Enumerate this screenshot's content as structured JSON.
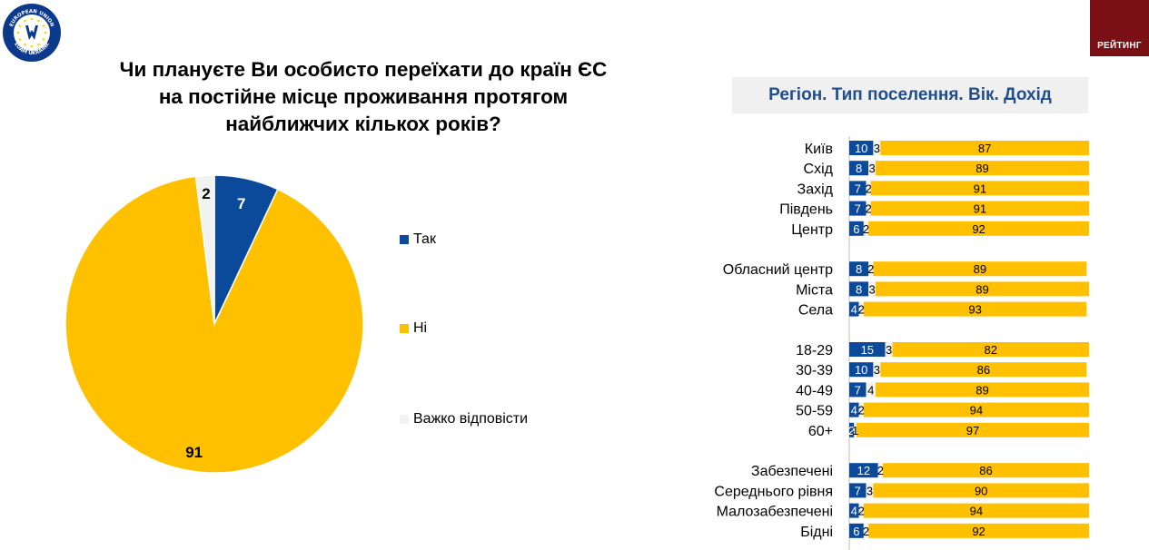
{
  "branding": {
    "left_logo_text_top": "EUROPEAN UNION",
    "left_logo_text_bottom": "EUAM UKRAINE",
    "right_logo_text": "РЕЙТИНГ"
  },
  "colors": {
    "yes": "#0b4a9a",
    "no": "#ffc000",
    "hard": "#f2f2f2",
    "header_text": "#1f4e8c",
    "brand_red": "#7a1015"
  },
  "main_title": "Чи плануєте Ви особисто переїхати до країн ЄС\nна постійне місце проживання протягом\nнайближчих кількох років?",
  "section_header": "Регіон. Тип поселення. Вік. Дохід",
  "legend": [
    {
      "label": "Так",
      "color": "#0b4a9a"
    },
    {
      "label": "Ні",
      "color": "#ffc000"
    },
    {
      "label": "Важко відповісти",
      "color": "#f2f2f2"
    }
  ],
  "chart_data": [
    {
      "type": "pie",
      "categories": [
        "Так",
        "Ні",
        "Важко відповісти"
      ],
      "values": [
        7,
        91,
        2
      ],
      "data_labels": [
        "7",
        "91",
        "2"
      ],
      "legend_position": "right"
    },
    {
      "type": "bar",
      "orientation": "horizontal",
      "stacked": true,
      "xlim": [
        0,
        100
      ],
      "groups": [
        [
          "Київ",
          "Схід",
          "Захід",
          "Південь",
          "Центр"
        ],
        [
          "Обласний центр",
          "Міста",
          "Села"
        ],
        [
          "18-29",
          "30-39",
          "40-49",
          "50-59",
          "60+"
        ],
        [
          "Забезпечені",
          "Середнього рівня",
          "Малозабезпечені",
          "Бідні"
        ]
      ],
      "categories": [
        "Київ",
        "Схід",
        "Захід",
        "Південь",
        "Центр",
        "Обласний центр",
        "Міста",
        "Села",
        "18-29",
        "30-39",
        "40-49",
        "50-59",
        "60+",
        "Забезпечені",
        "Середнього рівня",
        "Малозабезпечені",
        "Бідні"
      ],
      "series": [
        {
          "name": "Так",
          "values": [
            10,
            8,
            7,
            7,
            6,
            8,
            8,
            4,
            15,
            10,
            7,
            4,
            2,
            12,
            7,
            4,
            6
          ]
        },
        {
          "name": "Важко відповісти",
          "values": [
            3,
            3,
            2,
            2,
            2,
            2,
            3,
            2,
            3,
            3,
            4,
            2,
            1,
            2,
            3,
            2,
            2
          ]
        },
        {
          "name": "Ні",
          "values": [
            87,
            89,
            91,
            91,
            92,
            89,
            89,
            93,
            82,
            86,
            89,
            94,
            97,
            86,
            90,
            94,
            92
          ]
        }
      ]
    }
  ]
}
